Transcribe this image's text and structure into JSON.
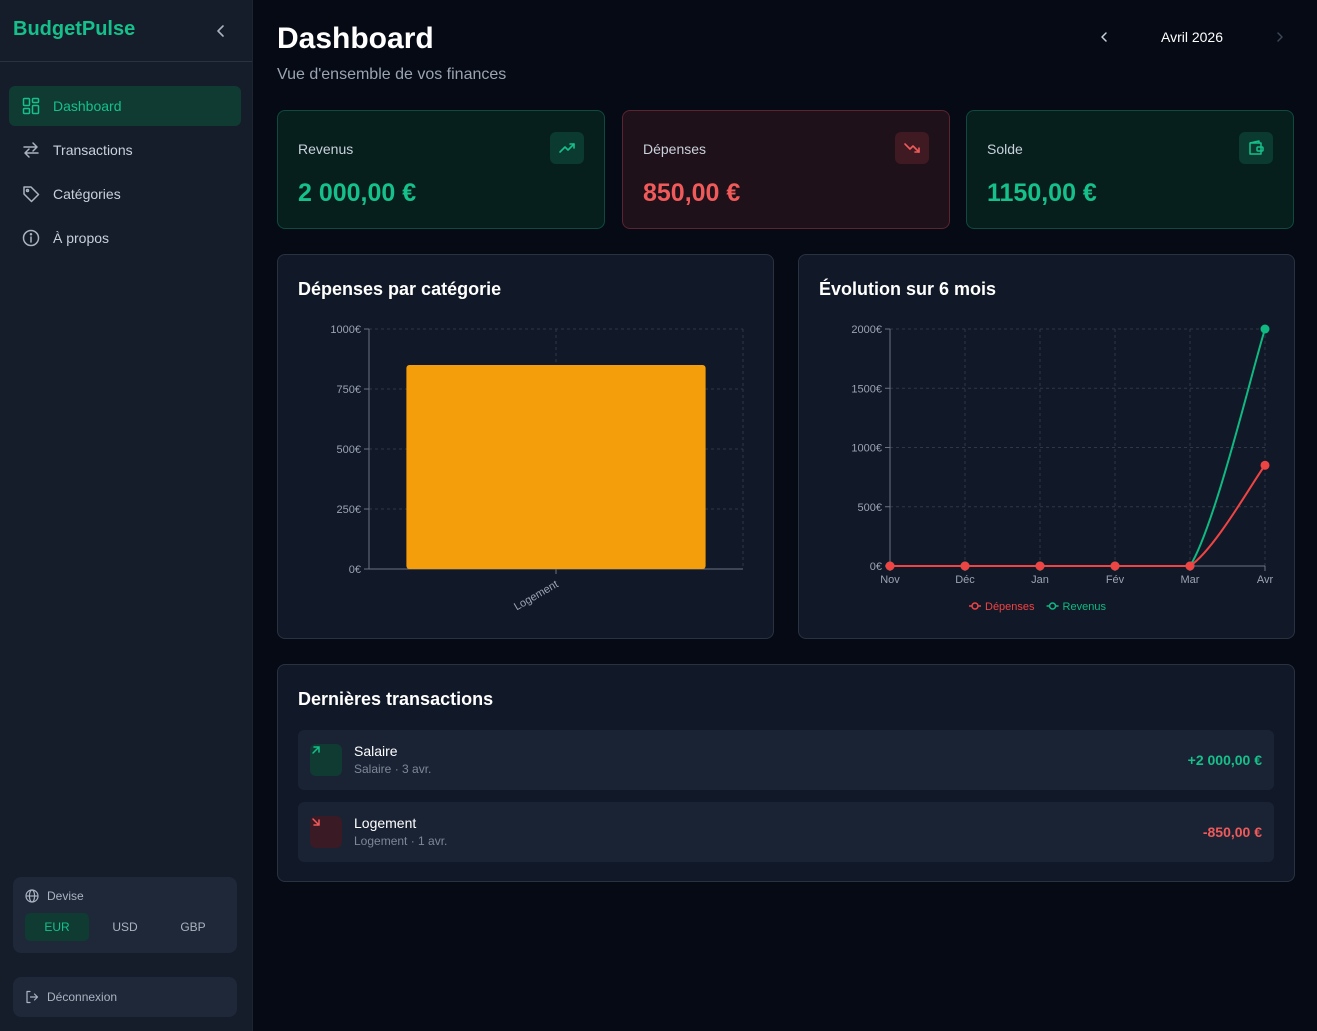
{
  "sidebar": {
    "brand": "BudgetPulse",
    "nav": [
      {
        "label": "Dashboard",
        "icon": "grid-icon",
        "active": true
      },
      {
        "label": "Transactions",
        "icon": "arrows-swap-icon",
        "active": false
      },
      {
        "label": "Catégories",
        "icon": "tag-icon",
        "active": false
      },
      {
        "label": "À propos",
        "icon": "info-icon",
        "active": false
      }
    ],
    "currency": {
      "label": "Devise",
      "options": [
        "EUR",
        "USD",
        "GBP"
      ],
      "selected": "EUR"
    },
    "logout_label": "Déconnexion"
  },
  "header": {
    "title": "Dashboard",
    "subtitle": "Vue d'ensemble de vos finances",
    "month": "Avril 2026"
  },
  "stats": [
    {
      "label": "Revenus",
      "value": "2 000,00 €",
      "icon": "trending-up-icon"
    },
    {
      "label": "Dépenses",
      "value": "850,00 €",
      "icon": "trending-down-icon"
    },
    {
      "label": "Solde",
      "value": "1150,00 €",
      "icon": "wallet-icon"
    }
  ],
  "charts": {
    "category_title": "Dépenses par catégorie",
    "evolution_title": "Évolution sur 6 mois"
  },
  "chart_data": [
    {
      "type": "bar",
      "title": "Dépenses par catégorie",
      "categories": [
        "Logement"
      ],
      "values": [
        850
      ],
      "ylim": [
        0,
        1000
      ],
      "yticks": [
        "0€",
        "250€",
        "500€",
        "750€",
        "1000€"
      ],
      "ytick_values": [
        0,
        250,
        500,
        750,
        1000
      ],
      "grid": true,
      "colors": {
        "bar": "#f59e0b"
      }
    },
    {
      "type": "line",
      "title": "Évolution sur 6 mois",
      "x": [
        "Nov",
        "Déc",
        "Jan",
        "Fév",
        "Mar",
        "Avr"
      ],
      "series": [
        {
          "name": "Dépenses",
          "values": [
            0,
            0,
            0,
            0,
            0,
            850
          ],
          "color": "#ef4444"
        },
        {
          "name": "Revenus",
          "values": [
            0,
            0,
            0,
            0,
            0,
            2000
          ],
          "color": "#10b981"
        }
      ],
      "ylim": [
        0,
        2000
      ],
      "yticks": [
        "0€",
        "500€",
        "1000€",
        "1500€",
        "2000€"
      ],
      "ytick_values": [
        0,
        500,
        1000,
        1500,
        2000
      ],
      "grid": true,
      "legend": "bottom"
    }
  ],
  "transactions": {
    "title": "Dernières transactions",
    "items": [
      {
        "name": "Salaire",
        "sub": "Salaire · 3 avr.",
        "amount": "+2 000,00 €",
        "type": "income"
      },
      {
        "name": "Logement",
        "sub": "Logement · 1 avr.",
        "amount": "-850,00 €",
        "type": "expense"
      }
    ]
  },
  "colors": {
    "accent": "#16c08a",
    "expense": "#f05a5a",
    "bar": "#f59e0b"
  }
}
